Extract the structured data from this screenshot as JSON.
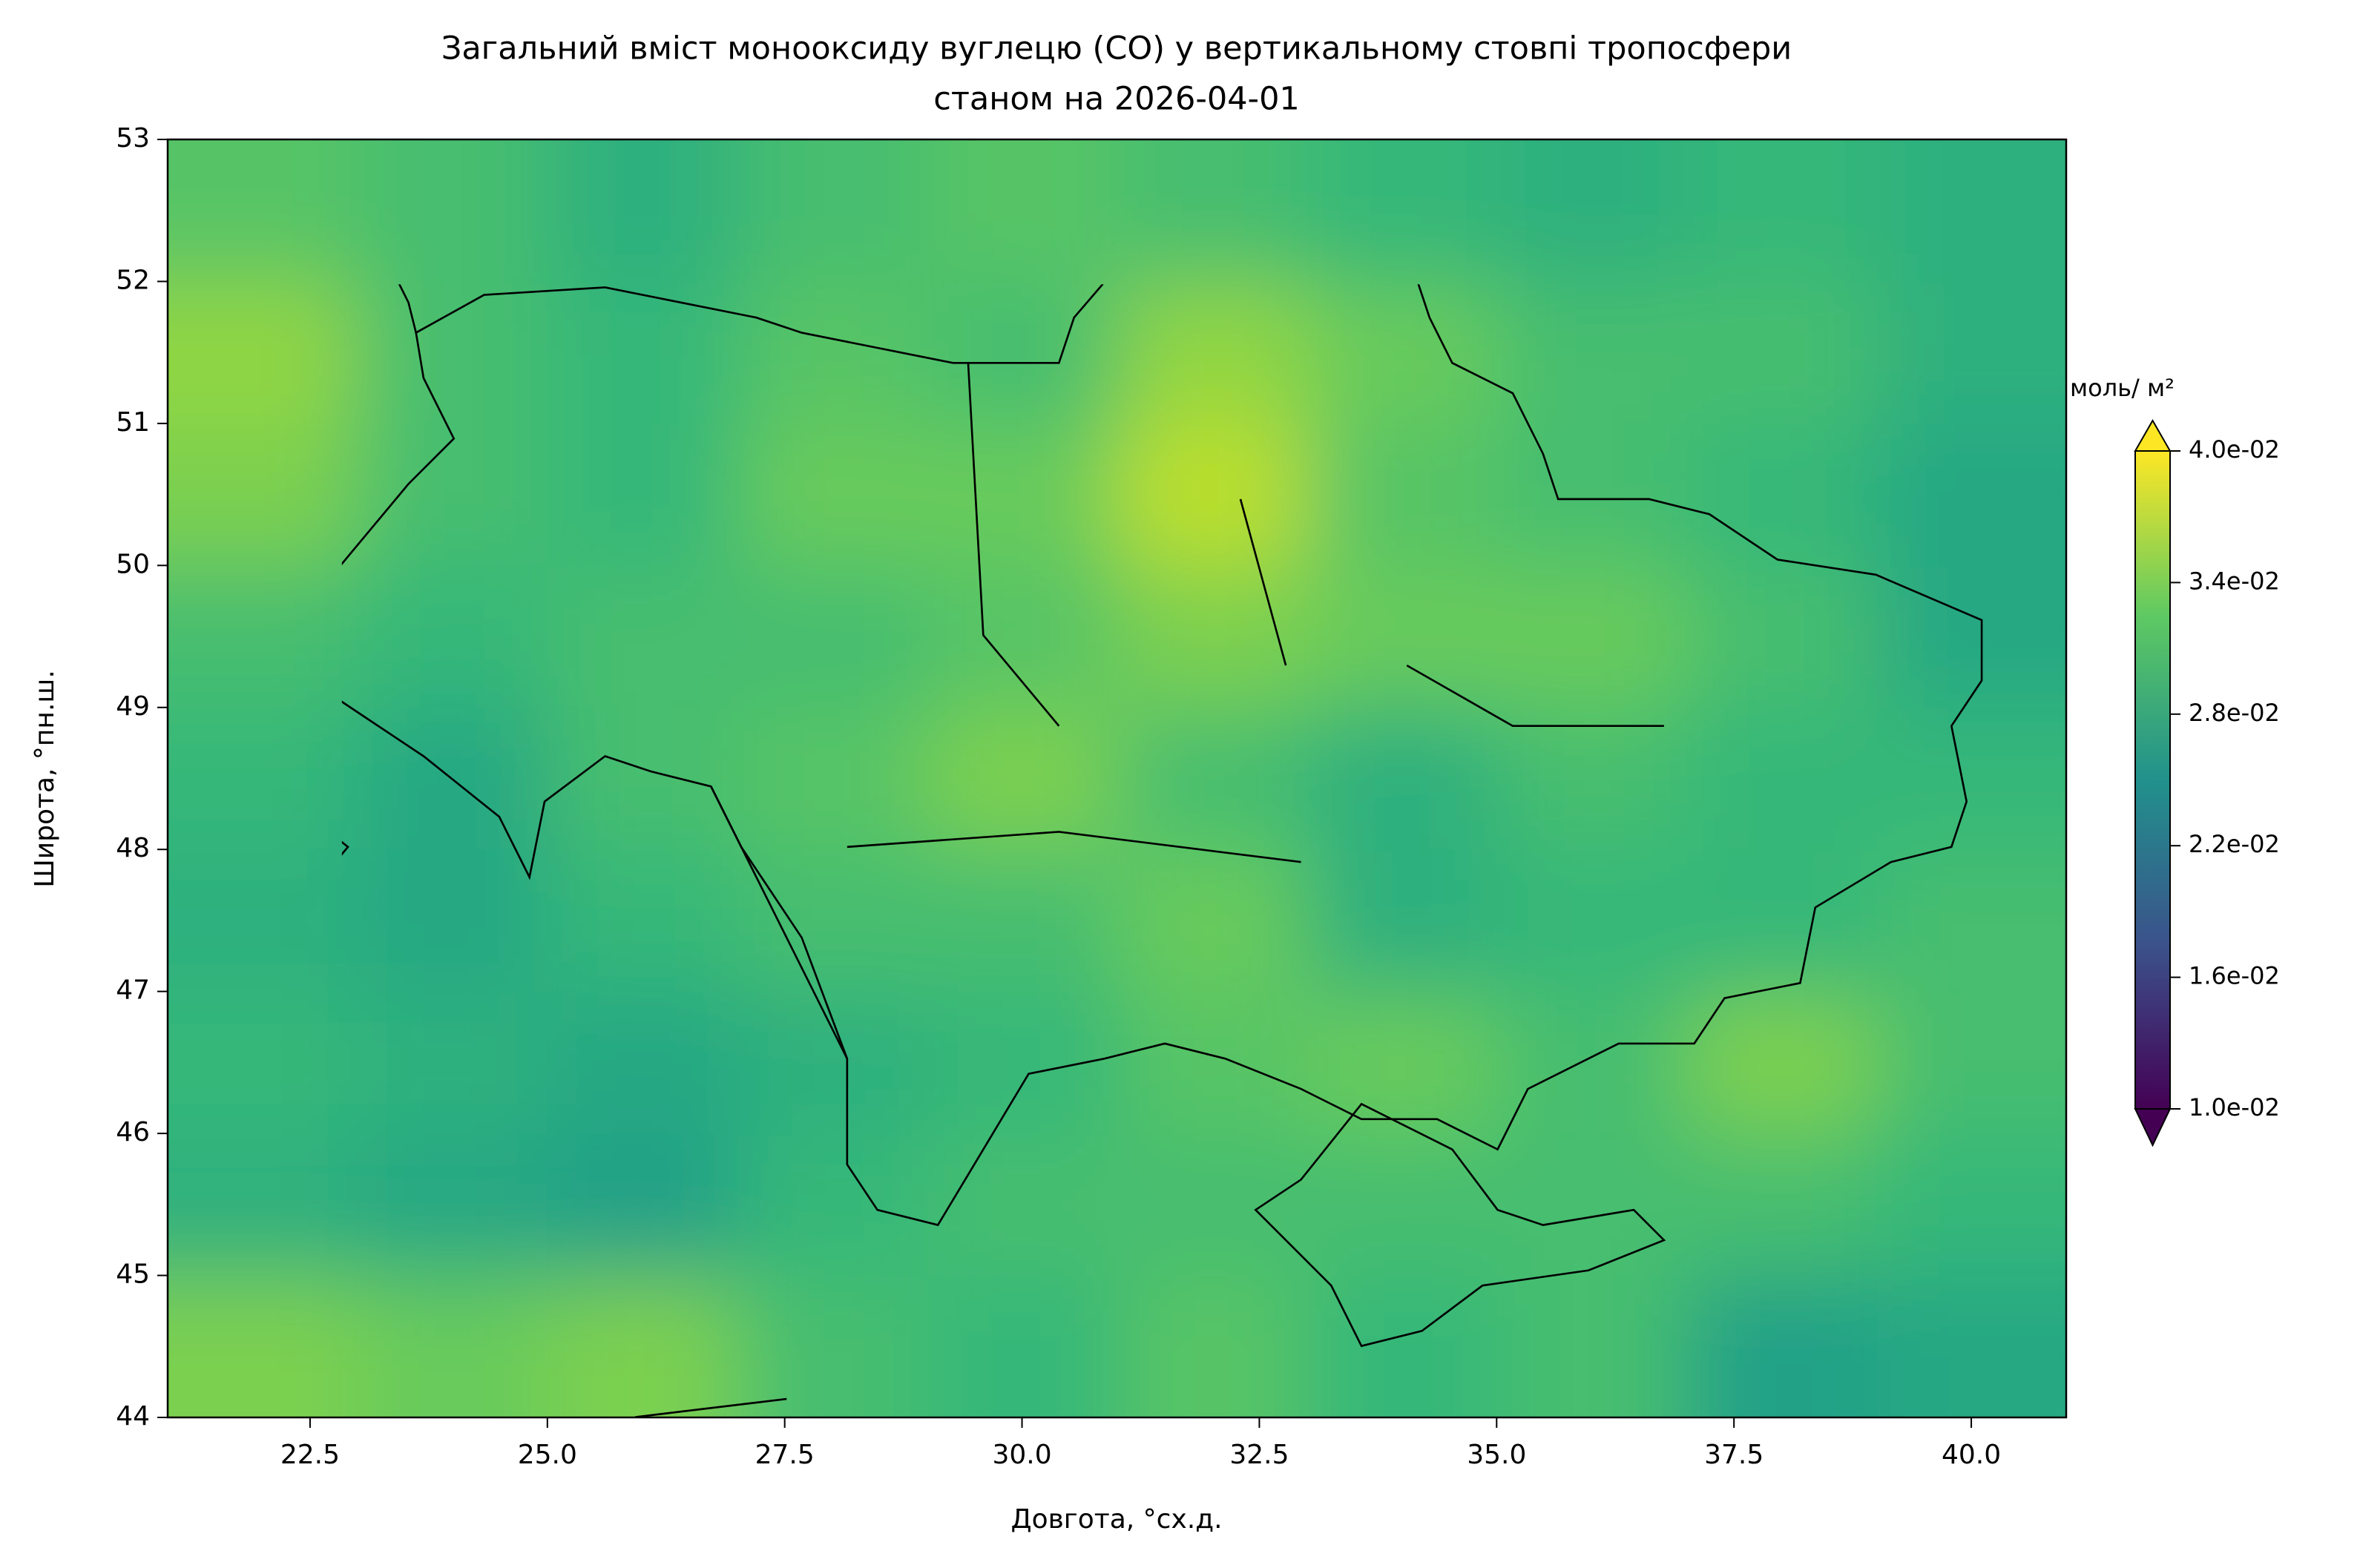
{
  "chart_data": {
    "type": "contour",
    "title": [
      "Загальний вміст монооксиду вуглецю (CO) у вертикальному стовпі тропосфери",
      "станом на 2026-04-01"
    ],
    "xlabel": "Довгота, °сх.д.",
    "ylabel": "Широта, °пн.ш.",
    "xlim": [
      21,
      41
    ],
    "ylim": [
      44,
      53
    ],
    "xticks": [
      22.5,
      {
        "value": 25,
        "label": "25.0"
      },
      27.5,
      {
        "value": 30,
        "label": "30.0"
      },
      32.5,
      {
        "value": 35,
        "label": "35.0"
      },
      37.5,
      {
        "value": 40,
        "label": "40.0"
      }
    ],
    "yticks": [
      44,
      45,
      46,
      47,
      48,
      49,
      50,
      51,
      52,
      53
    ],
    "colormap": "viridis",
    "colorbar_label": "моль/ м²",
    "clim": [
      0.01,
      0.04
    ],
    "cticks": [
      {
        "value": 0.01,
        "label": "1.0e-02"
      },
      {
        "value": 0.016,
        "label": "1.6e-02"
      },
      {
        "value": 0.022,
        "label": "2.2e-02"
      },
      {
        "value": 0.028,
        "label": "2.8e-02"
      },
      {
        "value": 0.034,
        "label": "3.4e-02"
      },
      {
        "value": 0.04,
        "label": "4.0e-02"
      }
    ],
    "x": [
      22,
      24,
      26,
      28,
      30,
      32,
      34,
      36,
      38,
      40
    ],
    "y": [
      44.5,
      45.5,
      46.5,
      47.5,
      48.5,
      49.5,
      50.5,
      51.5,
      52.5
    ],
    "z": [
      [
        0.034,
        0.033,
        0.034,
        0.031,
        0.03,
        0.032,
        0.03,
        0.031,
        0.027,
        0.028
      ],
      [
        0.029,
        0.028,
        0.027,
        0.03,
        0.031,
        0.031,
        0.031,
        0.031,
        0.031,
        0.03
      ],
      [
        0.03,
        0.029,
        0.028,
        0.029,
        0.03,
        0.032,
        0.033,
        0.031,
        0.034,
        0.031
      ],
      [
        0.029,
        0.028,
        0.03,
        0.031,
        0.031,
        0.033,
        0.029,
        0.03,
        0.03,
        0.031
      ],
      [
        0.03,
        0.028,
        0.031,
        0.032,
        0.034,
        0.031,
        0.029,
        0.031,
        0.03,
        0.03
      ],
      [
        0.031,
        0.03,
        0.031,
        0.031,
        0.032,
        0.034,
        0.033,
        0.033,
        0.031,
        0.028
      ],
      [
        0.034,
        0.031,
        0.03,
        0.033,
        0.033,
        0.037,
        0.032,
        0.031,
        0.03,
        0.028
      ],
      [
        0.035,
        0.031,
        0.03,
        0.032,
        0.031,
        0.035,
        0.033,
        0.031,
        0.031,
        0.029
      ],
      [
        0.032,
        0.031,
        0.029,
        0.031,
        0.032,
        0.031,
        0.03,
        0.029,
        0.03,
        0.029
      ]
    ]
  }
}
